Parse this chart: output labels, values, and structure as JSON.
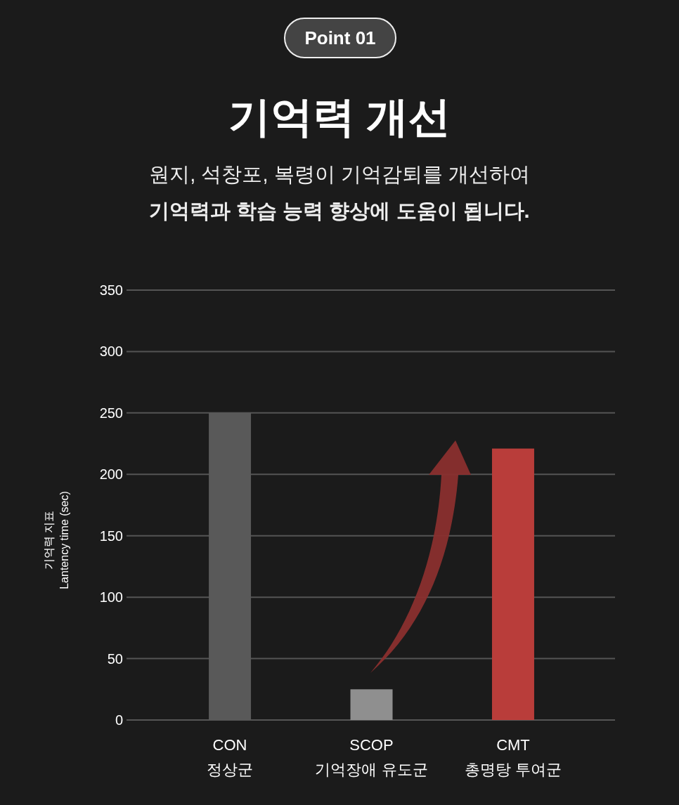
{
  "chart_data": {
    "type": "bar",
    "title": "기억력 개선",
    "subtitle": "원지, 석창포, 복령이 기억감퇴를 개선하여\n기억력과 학습 능력 향상에 도움이 됩니다.",
    "annotations": [
      "Point 01"
    ],
    "ylabel": "기억력 지표\nLantency time (sec)",
    "categories": [
      "CON\n정상군",
      "SCOP\n기억장애 유도군",
      "CMT\n총명탕 투여군"
    ],
    "values": [
      250,
      25,
      221
    ],
    "colors": [
      "#595959",
      "#8f8f8f",
      "#b93d3a"
    ],
    "ylim": [
      0,
      350
    ],
    "yticks": [
      0,
      50,
      100,
      150,
      200,
      250,
      300,
      350
    ],
    "grid": "y"
  }
}
